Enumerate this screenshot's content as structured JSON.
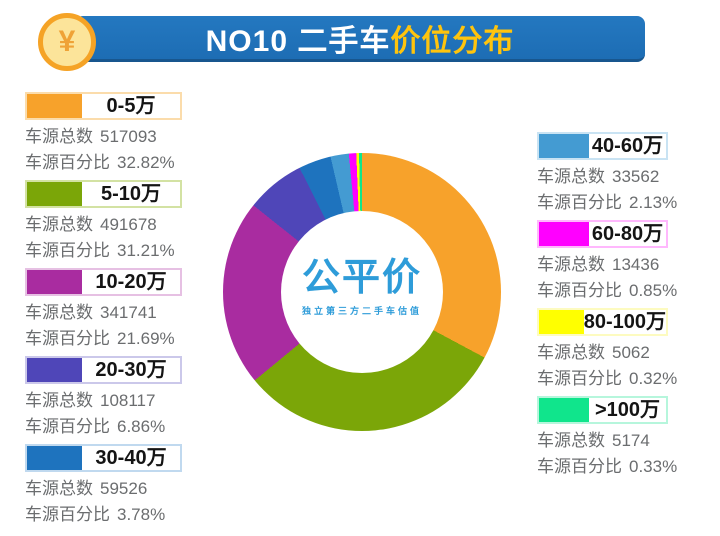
{
  "header": {
    "icon": "yuan-coin-icon",
    "icon_symbol": "¥",
    "title_prefix": "NO10 二手车",
    "title_highlight": "价位分布",
    "bar_color": "#1F72B8",
    "highlight_color": "#FFC40D"
  },
  "center_logo": {
    "name": "公平价",
    "subtitle": "独立第三方二手车估值",
    "color": "#2E9CD9"
  },
  "chart_data": {
    "type": "pie",
    "variant": "donut",
    "title": "NO10 二手车价位分布",
    "count_label": "车源总数",
    "percent_label": "车源百分比",
    "start_angle_deg": 0,
    "direction": "clockwise",
    "total_percent": 99.99,
    "legend_position": "left-and-right",
    "segments": [
      {
        "label": "0-5万",
        "count": 517093,
        "percent": 32.82,
        "percent_display": "32.82%",
        "color": "#F7A22B",
        "tint": "#FBDCAB",
        "column": "left"
      },
      {
        "label": "5-10万",
        "count": 491678,
        "percent": 31.21,
        "percent_display": "31.21%",
        "color": "#7BA608",
        "tint": "#D3E2A3",
        "column": "left"
      },
      {
        "label": "10-20万",
        "count": 341741,
        "percent": 21.69,
        "percent_display": "21.69%",
        "color": "#A92CA0",
        "tint": "#E6C0E3",
        "column": "left"
      },
      {
        "label": "20-30万",
        "count": 108117,
        "percent": 6.86,
        "percent_display": "6.86%",
        "color": "#4F46B8",
        "tint": "#CBC8EA",
        "column": "left"
      },
      {
        "label": "30-40万",
        "count": 59526,
        "percent": 3.78,
        "percent_display": "3.78%",
        "color": "#1E73BE",
        "tint": "#C0D9EF",
        "column": "left"
      },
      {
        "label": "40-60万",
        "count": 33562,
        "percent": 2.13,
        "percent_display": "2.13%",
        "color": "#449BD2",
        "tint": "#C9E3F3",
        "column": "right"
      },
      {
        "label": "60-80万",
        "count": 13436,
        "percent": 0.85,
        "percent_display": "0.85%",
        "color": "#FF00FF",
        "tint": "#FFB8FD",
        "column": "right"
      },
      {
        "label": "80-100万",
        "count": 5062,
        "percent": 0.32,
        "percent_display": "0.32%",
        "color": "#FFFF00",
        "tint": "#FDFBC0",
        "column": "right"
      },
      {
        "label": ">100万",
        "count": 5174,
        "percent": 0.33,
        "percent_display": "0.33%",
        "color": "#10E58C",
        "tint": "#B6F6DC",
        "column": "right"
      }
    ]
  }
}
